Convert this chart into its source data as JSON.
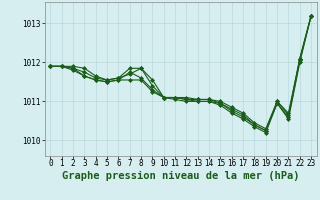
{
  "title": "Graphe pression niveau de la mer (hPa)",
  "background_color": "#d6eef0",
  "line_color": "#1a5c1a",
  "grid_color": "#b8d8dc",
  "x_ticks": [
    0,
    1,
    2,
    3,
    4,
    5,
    6,
    7,
    8,
    9,
    10,
    11,
    12,
    13,
    14,
    15,
    16,
    17,
    18,
    19,
    20,
    21,
    22,
    23
  ],
  "y_ticks": [
    1010,
    1011,
    1012,
    1013
  ],
  "ylim": [
    1009.6,
    1013.55
  ],
  "xlim": [
    -0.5,
    23.5
  ],
  "series": [
    [
      1011.9,
      1011.9,
      1011.9,
      1011.85,
      1011.65,
      1011.55,
      1011.6,
      1011.7,
      1011.85,
      1011.55,
      1011.1,
      1011.1,
      1011.1,
      1011.05,
      1011.05,
      1011.0,
      1010.85,
      1010.7,
      1010.45,
      1010.3,
      1011.0,
      1010.7,
      1012.1,
      1013.2
    ],
    [
      1011.9,
      1011.9,
      1011.85,
      1011.75,
      1011.6,
      1011.55,
      1011.6,
      1011.85,
      1011.85,
      1011.4,
      1011.1,
      1011.1,
      1011.05,
      1011.05,
      1011.05,
      1010.95,
      1010.8,
      1010.65,
      1010.4,
      1010.25,
      1011.0,
      1010.65,
      1012.1,
      1013.2
    ],
    [
      1011.9,
      1011.9,
      1011.85,
      1011.65,
      1011.55,
      1011.5,
      1011.55,
      1011.75,
      1011.6,
      1011.3,
      1011.1,
      1011.1,
      1011.05,
      1011.0,
      1011.0,
      1010.95,
      1010.75,
      1010.6,
      1010.4,
      1010.25,
      1010.95,
      1010.6,
      1012.05,
      1013.2
    ],
    [
      1011.9,
      1011.9,
      1011.8,
      1011.65,
      1011.55,
      1011.5,
      1011.55,
      1011.55,
      1011.55,
      1011.25,
      1011.1,
      1011.05,
      1011.0,
      1011.0,
      1011.0,
      1010.9,
      1010.7,
      1010.55,
      1010.35,
      1010.2,
      1010.95,
      1010.55,
      1012.0,
      1013.2
    ]
  ],
  "marker": "D",
  "markersize": 2.0,
  "linewidth": 0.8,
  "title_fontsize": 7.5,
  "tick_fontsize": 5.5
}
